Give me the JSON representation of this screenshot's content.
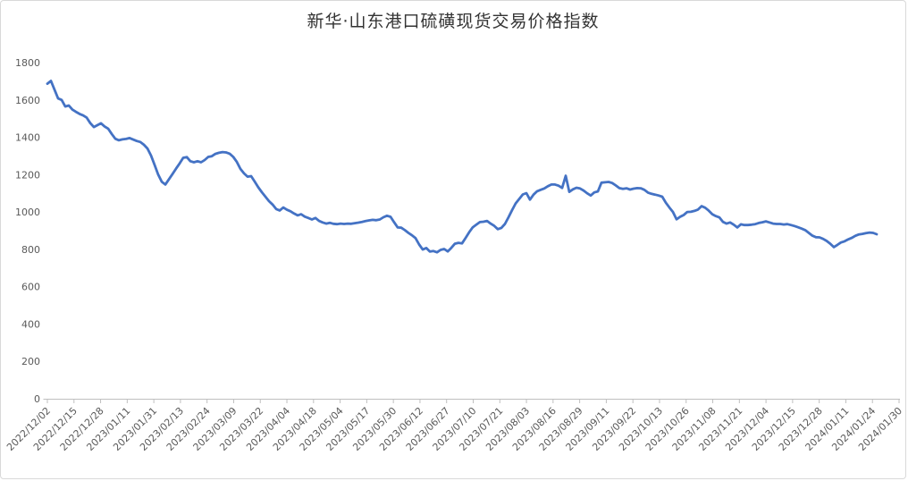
{
  "chart_data": {
    "type": "line",
    "title": "新华·山东港口硫磺现货交易价格指数",
    "line_color": "#4472C4",
    "axis_color": "#BFBFBF",
    "label_color": "#595959",
    "title_color": "#333333",
    "ylim": [
      0,
      1800
    ],
    "y_ticks": [
      0,
      200,
      400,
      600,
      800,
      1000,
      1200,
      1400,
      1600,
      1800
    ],
    "grid": false,
    "legend": false,
    "x_tick_labels": [
      "2022/12/02",
      "2022/12/15",
      "2022/12/28",
      "2023/01/11",
      "2023/01/31",
      "2023/02/13",
      "2023/02/24",
      "2023/03/09",
      "2023/03/22",
      "2023/04/04",
      "2023/04/18",
      "2023/05/04",
      "2023/05/17",
      "2023/05/30",
      "2023/06/12",
      "2023/06/27",
      "2023/07/10",
      "2023/07/21",
      "2023/08/03",
      "2023/08/16",
      "2023/08/29",
      "2023/09/11",
      "2023/09/22",
      "2023/10/13",
      "2023/10/26",
      "2023/11/08",
      "2023/11/21",
      "2023/12/04",
      "2023/12/15",
      "2023/12/28",
      "2024/01/11",
      "2024/01/24",
      "2024/01/30"
    ],
    "values": [
      1687,
      1702,
      1655,
      1608,
      1600,
      1565,
      1570,
      1548,
      1536,
      1525,
      1517,
      1505,
      1476,
      1455,
      1465,
      1475,
      1458,
      1446,
      1418,
      1392,
      1384,
      1389,
      1391,
      1396,
      1388,
      1380,
      1375,
      1360,
      1340,
      1302,
      1252,
      1200,
      1162,
      1147,
      1175,
      1203,
      1232,
      1260,
      1290,
      1294,
      1272,
      1266,
      1272,
      1266,
      1278,
      1295,
      1299,
      1311,
      1317,
      1321,
      1319,
      1312,
      1295,
      1268,
      1231,
      1207,
      1189,
      1192,
      1163,
      1132,
      1106,
      1082,
      1058,
      1040,
      1016,
      1008,
      1024,
      1012,
      1004,
      992,
      982,
      988,
      975,
      968,
      960,
      968,
      952,
      944,
      938,
      942,
      937,
      935,
      938,
      936,
      938,
      937,
      940,
      943,
      947,
      951,
      955,
      958,
      956,
      960,
      972,
      980,
      974,
      945,
      917,
      916,
      903,
      888,
      875,
      860,
      826,
      799,
      807,
      788,
      791,
      784,
      797,
      802,
      789,
      808,
      830,
      835,
      832,
      861,
      892,
      918,
      932,
      946,
      948,
      952,
      938,
      926,
      908,
      915,
      936,
      972,
      1010,
      1046,
      1070,
      1094,
      1101,
      1066,
      1093,
      1111,
      1119,
      1126,
      1138,
      1147,
      1147,
      1141,
      1129,
      1194,
      1108,
      1121,
      1130,
      1126,
      1115,
      1100,
      1088,
      1105,
      1110,
      1157,
      1159,
      1161,
      1155,
      1142,
      1128,
      1124,
      1127,
      1120,
      1125,
      1128,
      1127,
      1119,
      1104,
      1097,
      1093,
      1088,
      1082,
      1050,
      1024,
      1000,
      961,
      974,
      984,
      1000,
      1001,
      1006,
      1013,
      1031,
      1023,
      1007,
      988,
      978,
      971,
      947,
      938,
      944,
      932,
      917,
      934,
      930,
      930,
      932,
      935,
      941,
      945,
      950,
      944,
      938,
      936,
      936,
      933,
      935,
      930,
      925,
      918,
      911,
      903,
      888,
      873,
      865,
      864,
      856,
      845,
      830,
      812,
      824,
      837,
      843,
      853,
      861,
      872,
      880,
      883,
      887,
      890,
      888,
      881
    ]
  }
}
